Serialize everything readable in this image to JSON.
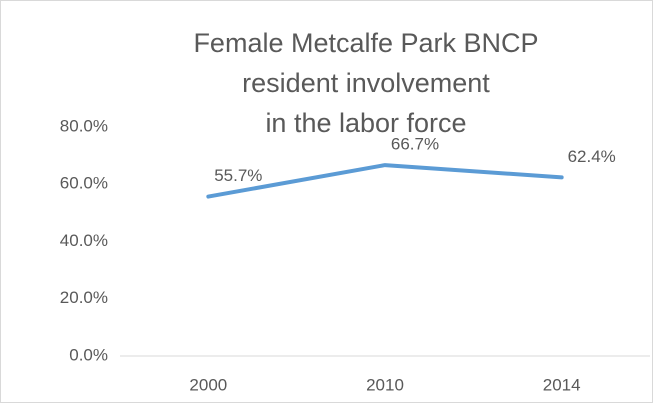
{
  "chart_data": {
    "type": "line",
    "title": [
      "Female Metcalfe Park BNCP",
      "resident involvement",
      "in the labor force"
    ],
    "categories": [
      "2000",
      "2010",
      "2014"
    ],
    "series": [
      {
        "color": "#5b9bd5",
        "values": [
          55.7,
          66.7,
          62.4
        ],
        "value_labels": [
          "55.7%",
          "66.7%",
          "62.4%"
        ]
      }
    ],
    "ylim": [
      0,
      80
    ],
    "yticks": [
      {
        "value": 0,
        "label": "0.0%"
      },
      {
        "value": 20,
        "label": "20.0%"
      },
      {
        "value": 40,
        "label": "40.0%"
      },
      {
        "value": 60,
        "label": "60.0%"
      },
      {
        "value": 80,
        "label": "80.0%"
      }
    ],
    "grid": false
  }
}
